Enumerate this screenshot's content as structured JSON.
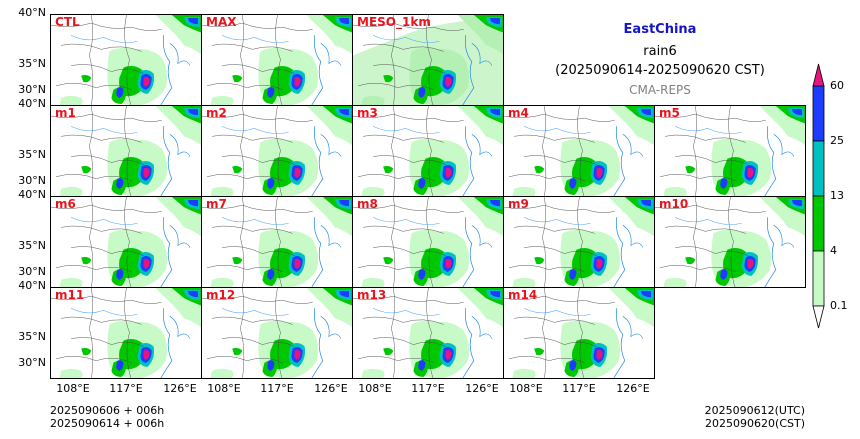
{
  "title": {
    "region": "EastChina",
    "variable": "rain6",
    "period": "(2025090614-2025090620 CST)",
    "system": "CMA-REPS"
  },
  "lat_labels": [
    "40°N",
    "35°N",
    "30°N"
  ],
  "lon_labels": [
    "108°E",
    "117°E",
    "126°E"
  ],
  "footer": {
    "init_utc": "2025090606  +  006h",
    "init_cst": "2025090614  +  006h",
    "valid_utc": "2025090612(UTC)",
    "valid_cst": "2025090620(CST)"
  },
  "colorbar": {
    "levels": [
      "0.1",
      "4",
      "13",
      "25",
      "60"
    ],
    "colors": [
      "#c8fac8",
      "#00c800",
      "#00c0c0",
      "#1e3cff",
      "#e6147d"
    ]
  },
  "rows": [
    [
      "CTL",
      "MAX",
      "MESO_1km"
    ],
    [
      "m1",
      "m2",
      "m3",
      "m4",
      "m5"
    ],
    [
      "m6",
      "m7",
      "m8",
      "m9",
      "m10"
    ],
    [
      "m11",
      "m12",
      "m13",
      "m14"
    ]
  ]
}
